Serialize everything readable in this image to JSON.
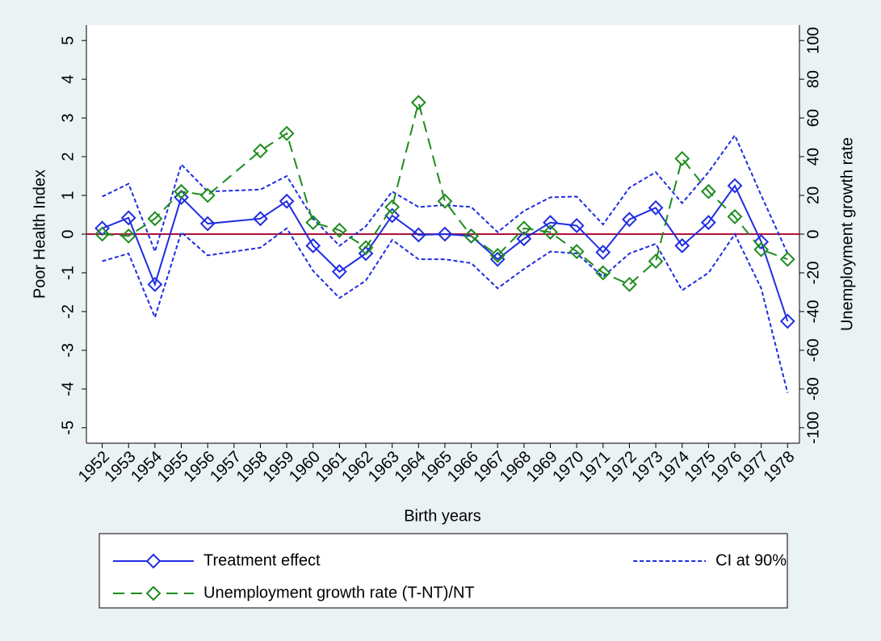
{
  "chart_data": {
    "type": "line",
    "x_label": "Birth years",
    "y_label": "Poor Health Index",
    "y2_label": "Unemployment growth rate",
    "x": [
      1952,
      1953,
      1954,
      1955,
      1956,
      1958,
      1959,
      1960,
      1961,
      1962,
      1963,
      1964,
      1965,
      1966,
      1967,
      1968,
      1969,
      1970,
      1971,
      1972,
      1973,
      1974,
      1975,
      1976,
      1977,
      1978
    ],
    "xlim": [
      1951.4,
      1978.45
    ],
    "xticks": [
      1952,
      1953,
      1954,
      1955,
      1956,
      1957,
      1958,
      1959,
      1960,
      1961,
      1962,
      1963,
      1964,
      1965,
      1966,
      1967,
      1968,
      1969,
      1970,
      1971,
      1972,
      1973,
      1974,
      1975,
      1976,
      1977,
      1978
    ],
    "ylim": [
      -5.4,
      5.4
    ],
    "yticks": [
      -5,
      -4,
      -3,
      -2,
      -1,
      0,
      1,
      2,
      3,
      4,
      5
    ],
    "y2lim": [
      -108,
      108
    ],
    "y2ticks": [
      -100,
      -80,
      -60,
      -40,
      -20,
      0,
      20,
      40,
      60,
      80,
      100
    ],
    "refline": {
      "value": 0,
      "color": "#b0103a"
    },
    "series": [
      {
        "name": "Treatment effect",
        "color": "#1f2de0",
        "style": "solid",
        "marker": "diamond",
        "values": [
          0.15,
          0.42,
          -1.3,
          0.95,
          0.27,
          0.4,
          0.85,
          -0.3,
          -0.97,
          -0.5,
          0.48,
          -0.02,
          0.0,
          -0.05,
          -0.65,
          -0.12,
          0.3,
          0.22,
          -0.47,
          0.38,
          0.68,
          -0.3,
          0.3,
          1.25,
          -0.2,
          -2.25
        ]
      },
      {
        "name": "CI at 90%",
        "color": "#1f2de0",
        "style": "shortdash",
        "values": [
          0.97,
          1.3,
          -0.45,
          1.8,
          1.1,
          1.15,
          1.5,
          0.4,
          -0.3,
          0.2,
          1.1,
          0.7,
          0.75,
          0.7,
          0.05,
          0.6,
          0.95,
          0.97,
          0.25,
          1.2,
          1.6,
          0.8,
          1.6,
          2.55,
          1.0,
          -0.5
        ]
      },
      {
        "color": "#1f2de0",
        "style": "shortdash",
        "values": [
          -0.7,
          -0.5,
          -2.15,
          0.05,
          -0.55,
          -0.35,
          0.15,
          -0.95,
          -1.65,
          -1.2,
          -0.15,
          -0.65,
          -0.65,
          -0.75,
          -1.4,
          -0.9,
          -0.45,
          -0.5,
          -1.1,
          -0.5,
          -0.25,
          -1.45,
          -1.0,
          0.0,
          -1.4,
          -4.1
        ]
      },
      {
        "name": "Unemployment growth rate (T-NT)/NT",
        "color": "#1e8c1e",
        "style": "dash",
        "marker": "diamond",
        "axis": "y2",
        "values": [
          0,
          -1,
          8,
          22,
          20,
          43,
          52,
          6,
          2,
          -7,
          14,
          68,
          17,
          -1,
          -11,
          3,
          1,
          -9,
          -20,
          -26,
          -14,
          39,
          22,
          9,
          -8,
          -13
        ]
      }
    ]
  }
}
